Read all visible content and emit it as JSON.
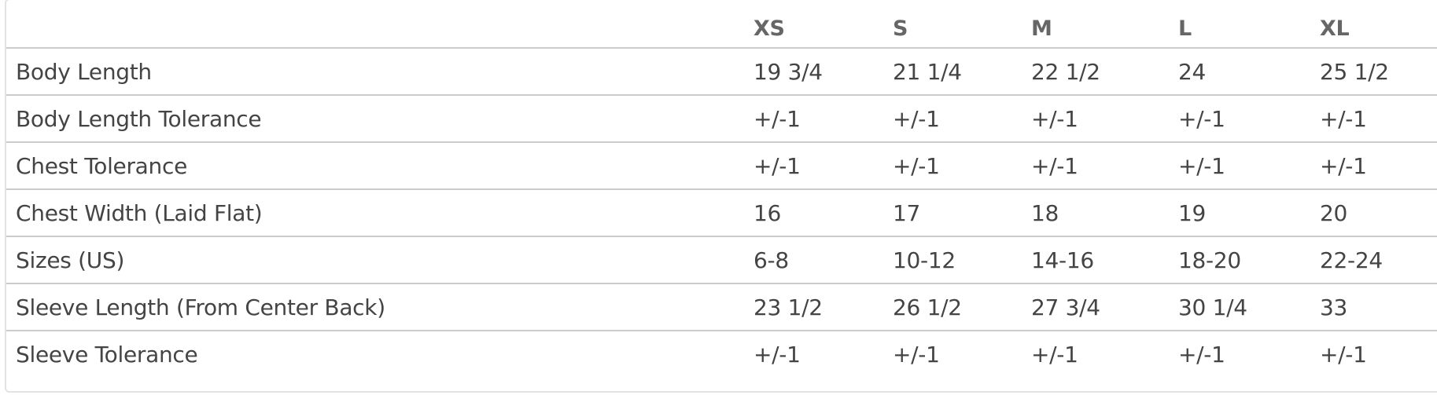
{
  "table": {
    "headers": [
      "",
      "XS",
      "S",
      "M",
      "L",
      "XL"
    ],
    "rows": [
      {
        "label": "Body Length",
        "values": [
          "19 3/4",
          "21 1/4",
          "22 1/2",
          "24",
          "25 1/2"
        ]
      },
      {
        "label": "Body Length Tolerance",
        "values": [
          "+/-1",
          "+/-1",
          "+/-1",
          "+/-1",
          "+/-1"
        ]
      },
      {
        "label": "Chest Tolerance",
        "values": [
          "+/-1",
          "+/-1",
          "+/-1",
          "+/-1",
          "+/-1"
        ]
      },
      {
        "label": "Chest Width (Laid Flat)",
        "values": [
          "16",
          "17",
          "18",
          "19",
          "20"
        ]
      },
      {
        "label": "Sizes (US)",
        "values": [
          "6-8",
          "10-12",
          "14-16",
          "18-20",
          "22-24"
        ]
      },
      {
        "label": "Sleeve Length (From Center Back)",
        "values": [
          "23 1/2",
          "26 1/2",
          "27 3/4",
          "30 1/4",
          "33"
        ]
      },
      {
        "label": "Sleeve Tolerance",
        "values": [
          "+/-1",
          "+/-1",
          "+/-1",
          "+/-1",
          "+/-1"
        ]
      }
    ]
  }
}
